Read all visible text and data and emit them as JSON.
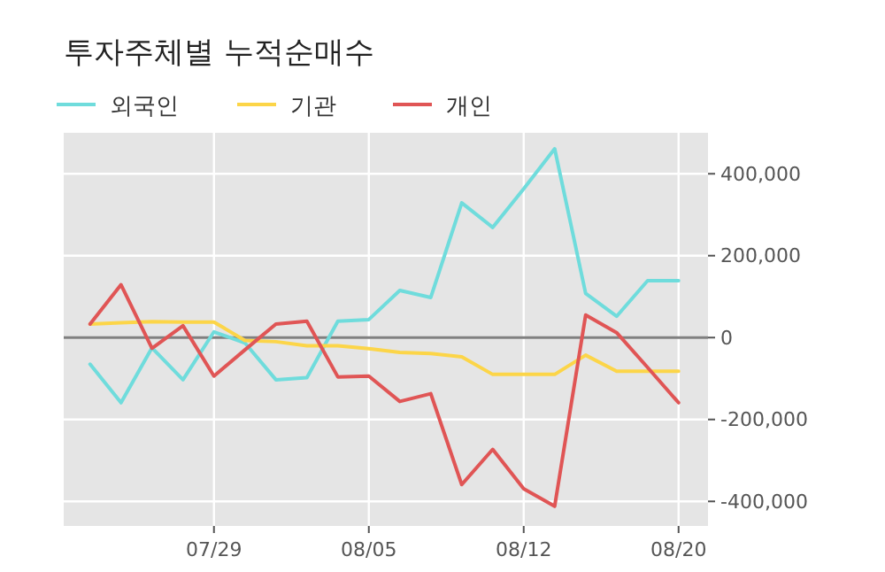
{
  "chart_data": {
    "type": "line",
    "title": "투자주체별 누적순매수",
    "categories": [
      null,
      null,
      null,
      null,
      "07/29",
      null,
      null,
      null,
      null,
      "08/05",
      null,
      null,
      null,
      null,
      "08/12",
      null,
      null,
      null,
      null,
      "08/20"
    ],
    "series": [
      {
        "name": "외국인",
        "color": "#6fdcdc",
        "values": [
          -65000,
          -159000,
          -25000,
          -103000,
          14000,
          -13000,
          -103000,
          -98000,
          40000,
          44000,
          115000,
          98000,
          329000,
          269000,
          363000,
          461000,
          108000,
          52000,
          139000,
          139000
        ]
      },
      {
        "name": "기관",
        "color": "#fcd548",
        "values": [
          33000,
          36000,
          39000,
          38000,
          38000,
          -7000,
          -10000,
          -20000,
          -20000,
          -27000,
          -36000,
          -39000,
          -47000,
          -90000,
          -90000,
          -90000,
          -43000,
          -82000,
          -82000,
          -82000
        ]
      },
      {
        "name": "개인",
        "color": "#e05555",
        "values": [
          33000,
          129000,
          -26000,
          29000,
          -94000,
          -30000,
          33000,
          40000,
          -96000,
          -94000,
          -156000,
          -137000,
          -359000,
          -273000,
          -369000,
          -412000,
          55000,
          12000,
          -73000,
          -159000
        ]
      }
    ],
    "ylim": [
      -460000,
      500000
    ],
    "yticks": [
      {
        "value": -400000,
        "label": "-400,000"
      },
      {
        "value": -200000,
        "label": "-200,000"
      },
      0,
      {
        "value": 200000,
        "label": "200,000"
      },
      {
        "value": 400000,
        "label": "400,000"
      }
    ],
    "grid": true,
    "legend": "top",
    "ref_lines": [
      {
        "axis": "y",
        "value": 0,
        "color": "#808080"
      }
    ]
  }
}
